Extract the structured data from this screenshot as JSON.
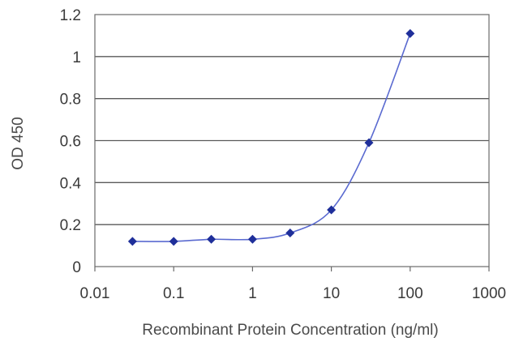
{
  "chart_data": {
    "type": "line",
    "title": "",
    "xlabel": "Recombinant Protein Concentration (ng/ml)",
    "ylabel": "OD 450",
    "x_scale": "log",
    "xlim": [
      0.01,
      1000
    ],
    "ylim": [
      0,
      1.2
    ],
    "x_ticks": [
      0.01,
      0.1,
      1,
      10,
      100,
      1000
    ],
    "x_tick_labels": [
      "0.01",
      "0.1",
      "1",
      "10",
      "100",
      "1000"
    ],
    "y_ticks": [
      0,
      0.2,
      0.4,
      0.6,
      0.8,
      1,
      1.2
    ],
    "y_tick_labels": [
      "0",
      "0.2",
      "0.4",
      "0.6",
      "0.8",
      "1",
      "1.2"
    ],
    "grid": "horizontal",
    "legend": "none",
    "series": [
      {
        "x": [
          0.03,
          0.1,
          0.3,
          1,
          3,
          10,
          30,
          100
        ],
        "values": [
          0.12,
          0.12,
          0.13,
          0.13,
          0.16,
          0.27,
          0.59,
          1.11
        ],
        "color": "#1f2f9a"
      }
    ],
    "colors": {
      "line": "#5a6ad0",
      "marker": "#1f2f9a",
      "grid": "#5a5a5a",
      "frame": "#6a6a6a"
    }
  }
}
